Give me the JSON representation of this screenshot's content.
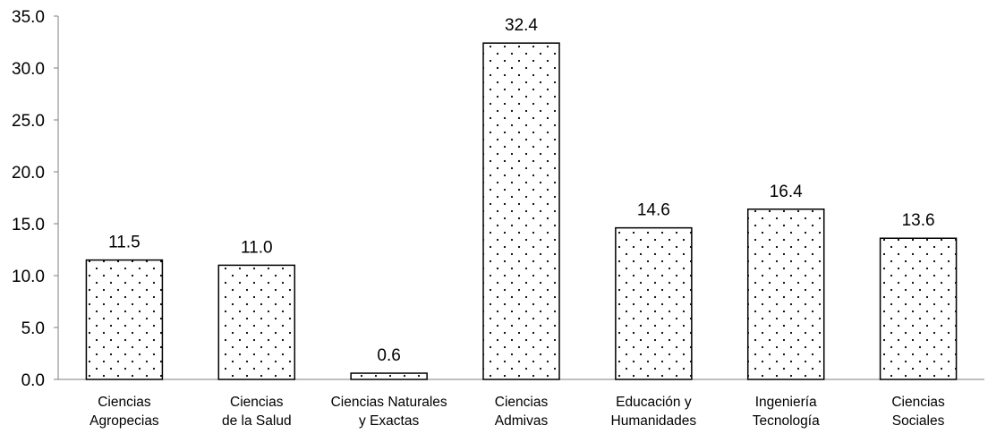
{
  "chart_data": {
    "type": "bar",
    "title": "",
    "xlabel": "",
    "ylabel": "",
    "ylim": [
      0,
      35
    ],
    "yticks": [
      "0.0",
      "5.0",
      "10.0",
      "15.0",
      "20.0",
      "25.0",
      "30.0",
      "35.0"
    ],
    "grid": false,
    "legend": "none",
    "bar_fill": "#ffffff",
    "bar_pattern": "dots",
    "bar_stroke": "#000000",
    "categories": [
      [
        "Ciencias",
        "Agropecias"
      ],
      [
        "Ciencias",
        "de la Salud"
      ],
      [
        "Ciencias Naturales",
        "y Exactas"
      ],
      [
        "Ciencias",
        "Admivas"
      ],
      [
        "Educación y",
        "Humanidades"
      ],
      [
        "Ingeniería",
        "Tecnología"
      ],
      [
        "Ciencias",
        "Sociales"
      ]
    ],
    "values": [
      11.5,
      11.0,
      0.6,
      32.4,
      14.6,
      16.4,
      13.6
    ],
    "value_labels": [
      "11.5",
      "11.0",
      "0.6",
      "32.4",
      "14.6",
      "16.4",
      "13.6"
    ]
  }
}
